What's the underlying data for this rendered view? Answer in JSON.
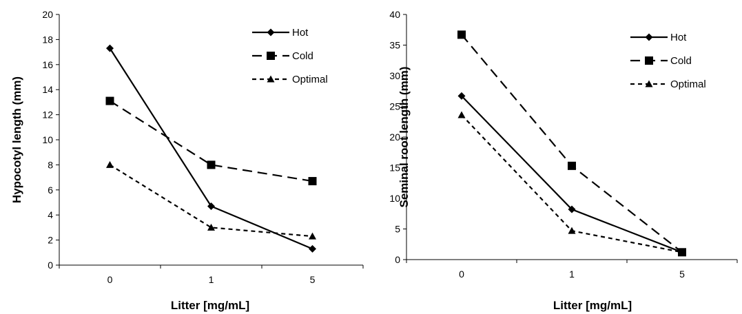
{
  "chart_data": [
    {
      "type": "line",
      "title": "",
      "xlabel": "Litter [mg/mL]",
      "ylabel": "Hypocotyl  length (mm)",
      "categories": [
        "0",
        "1",
        "5"
      ],
      "ylim": [
        0,
        20
      ],
      "yticks": [
        "0",
        "2",
        "4",
        "6",
        "8",
        "10",
        "12",
        "14",
        "16",
        "18",
        "20"
      ],
      "grid": false,
      "legend_position": "top-right",
      "series": [
        {
          "name": "Hot",
          "values": [
            17.3,
            4.7,
            1.3
          ],
          "color": "#000000",
          "style": "solid",
          "marker": "diamond"
        },
        {
          "name": "Cold",
          "values": [
            13.1,
            8.0,
            6.7
          ],
          "color": "#000000",
          "style": "long-dash",
          "marker": "square"
        },
        {
          "name": "Optimal",
          "values": [
            8.0,
            3.0,
            2.3
          ],
          "color": "#000000",
          "style": "short-dash",
          "marker": "triangle"
        }
      ]
    },
    {
      "type": "line",
      "title": "",
      "xlabel": "Litter [mg/mL]",
      "ylabel": "Seminal root length (mm)",
      "categories": [
        "0",
        "1",
        "5"
      ],
      "ylim": [
        0,
        40
      ],
      "yticks": [
        "0",
        "5",
        "10",
        "15",
        "20",
        "25",
        "30",
        "35",
        "40"
      ],
      "grid": false,
      "legend_position": "top-right",
      "series": [
        {
          "name": "Hot",
          "values": [
            26.7,
            8.2,
            1.2
          ],
          "color": "#000000",
          "style": "solid",
          "marker": "diamond"
        },
        {
          "name": "Cold",
          "values": [
            36.7,
            15.3,
            1.2
          ],
          "color": "#000000",
          "style": "long-dash",
          "marker": "square"
        },
        {
          "name": "Optimal",
          "values": [
            23.6,
            4.7,
            1.2
          ],
          "color": "#000000",
          "style": "short-dash",
          "marker": "triangle"
        }
      ]
    }
  ]
}
